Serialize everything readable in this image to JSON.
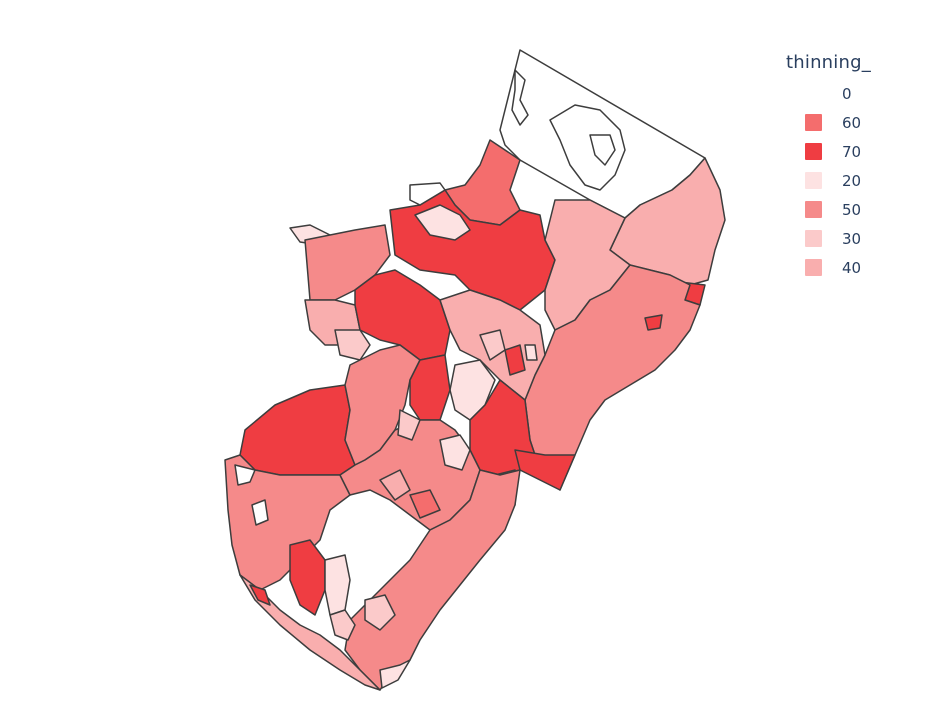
{
  "legend": {
    "title": "thinning_",
    "items": [
      {
        "label": "0",
        "color": "#ffffff"
      },
      {
        "label": "60",
        "color": "#f46d6d"
      },
      {
        "label": "70",
        "color": "#ef3d42"
      },
      {
        "label": "20",
        "color": "#fde2e2"
      },
      {
        "label": "50",
        "color": "#f58a8a"
      },
      {
        "label": "30",
        "color": "#fbcaca"
      },
      {
        "label": "40",
        "color": "#f9aeae"
      }
    ]
  }
}
